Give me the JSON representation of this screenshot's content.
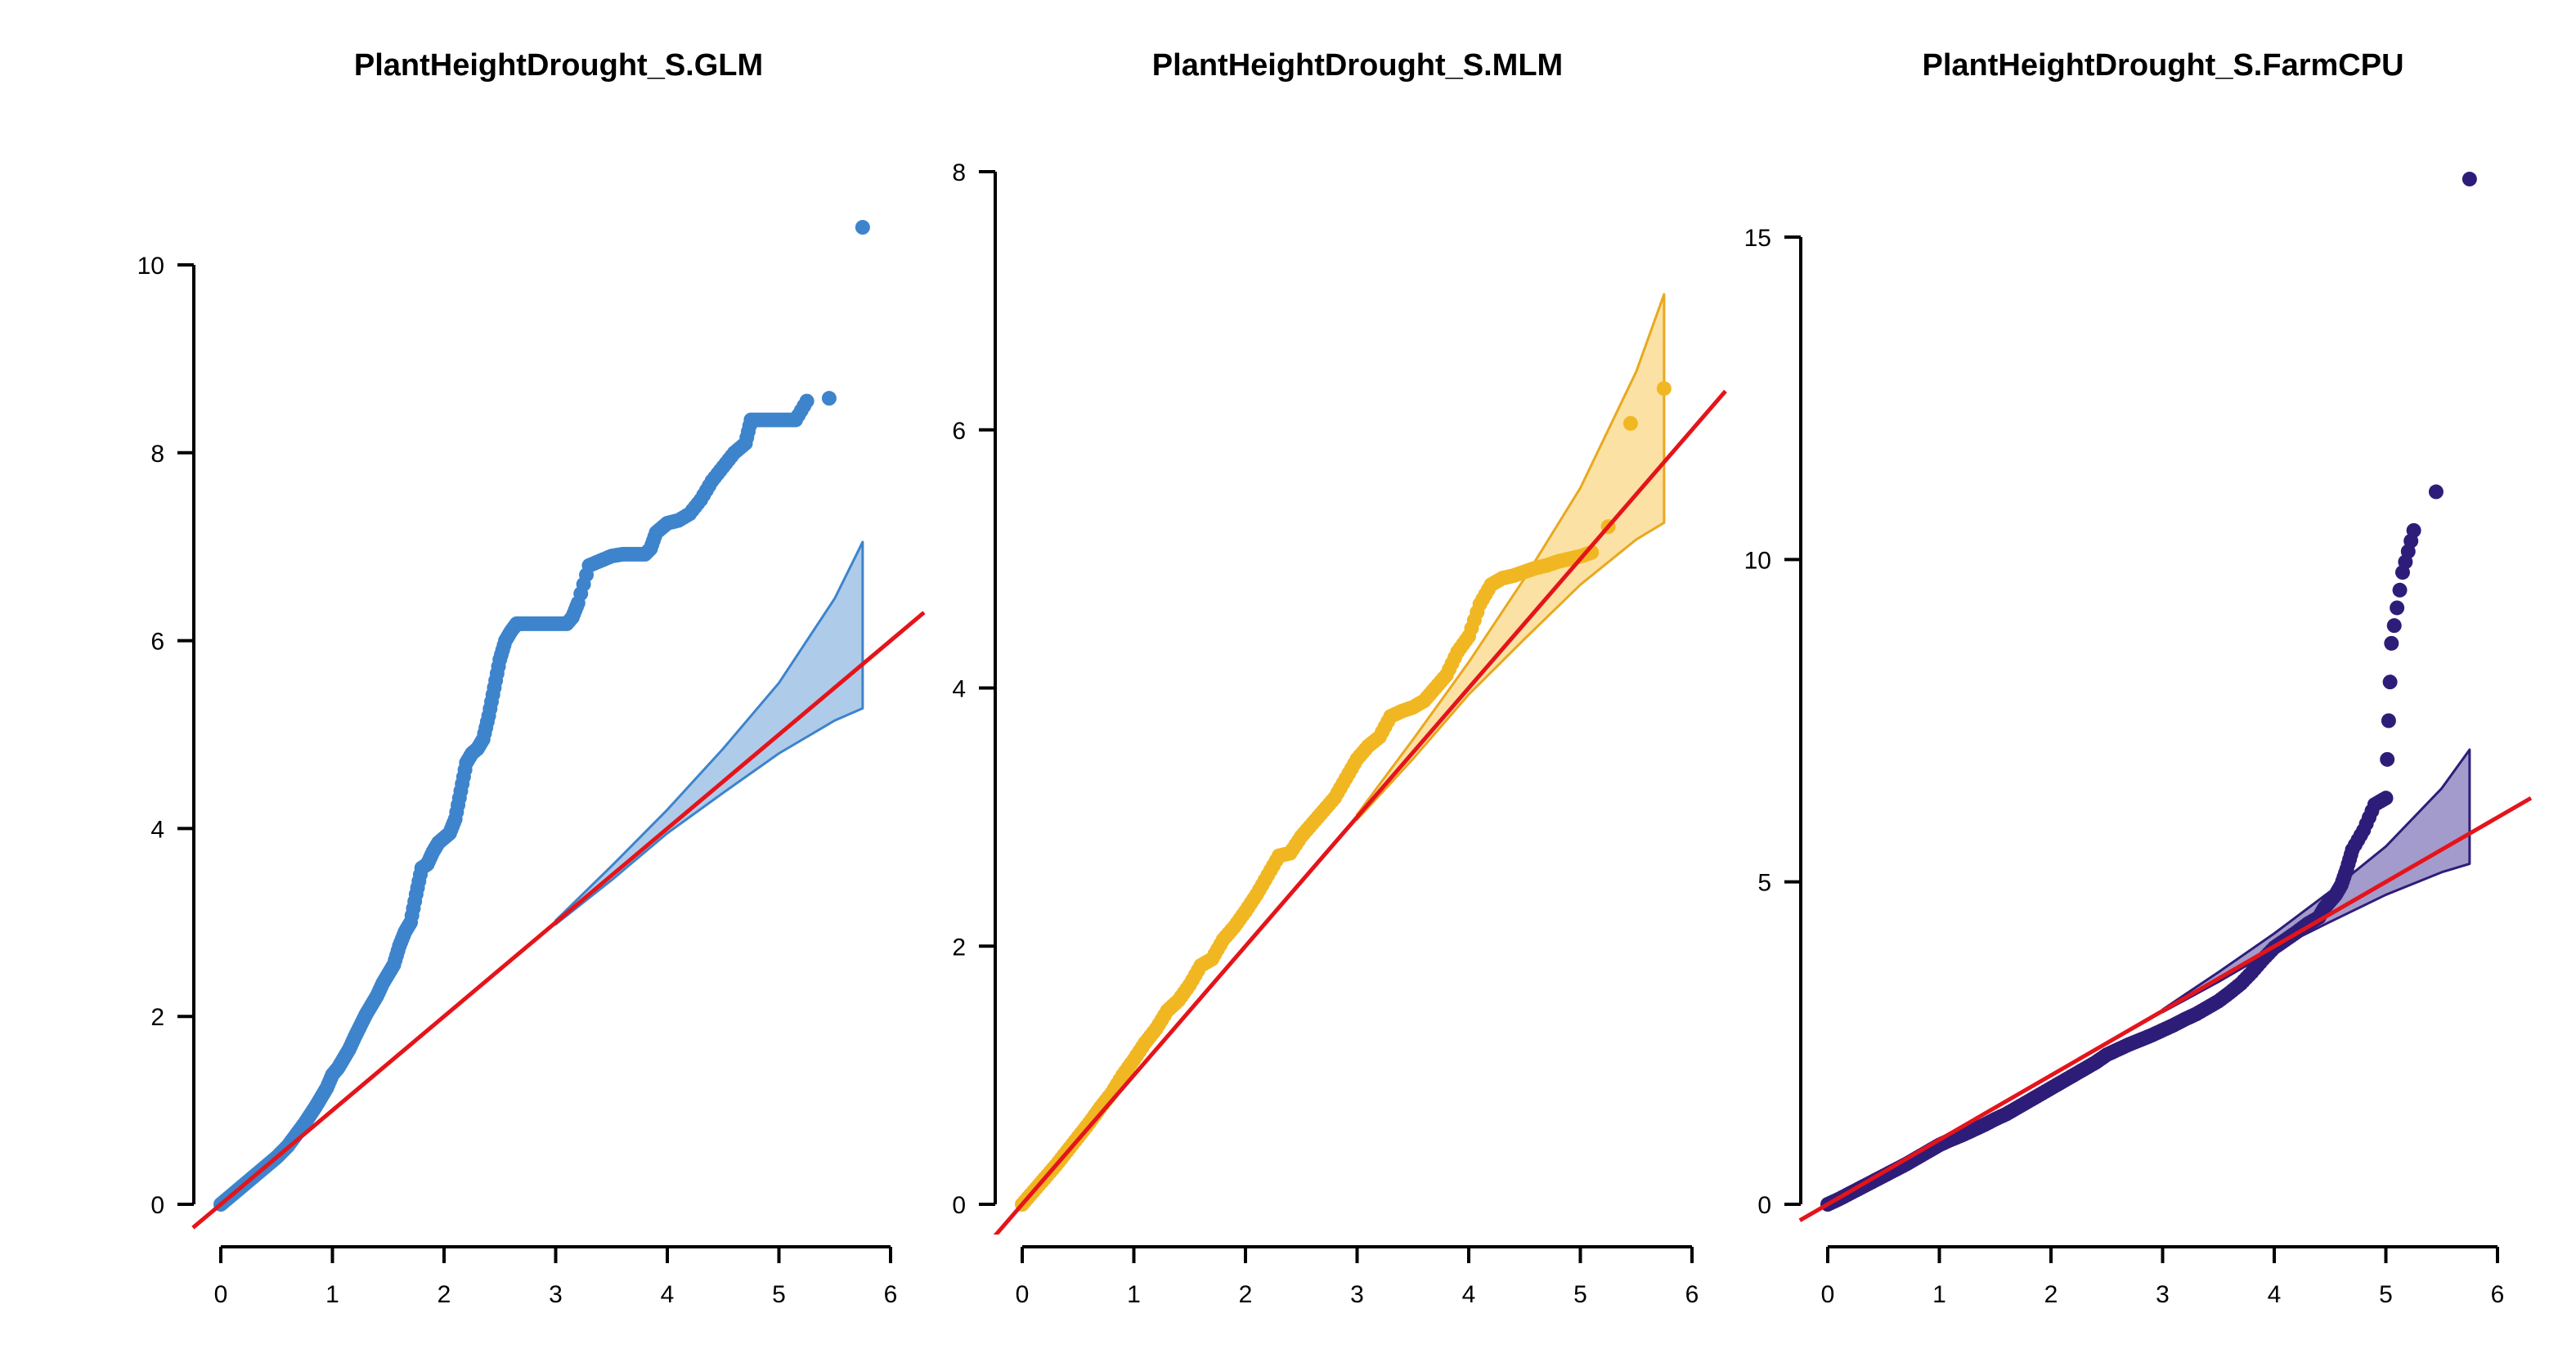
{
  "chart_data": [
    {
      "type": "scatter",
      "title": "PlantHeightDrought_S.GLM",
      "xlabel": "",
      "ylabel": "",
      "xlim": [
        0,
        6
      ],
      "ylim": [
        0,
        10
      ],
      "x_ticks": [
        0,
        1,
        2,
        3,
        4,
        5,
        6
      ],
      "y_ticks": [
        0,
        2,
        4,
        6,
        8,
        10
      ],
      "point_color": "#3D84CC",
      "band_fill": "#AFCBEA",
      "band_stroke": "#3D84CC",
      "reference_line_color": "#E4141B",
      "grid": false,
      "points": [
        [
          0,
          0
        ],
        [
          0.05,
          0.05
        ],
        [
          0.1,
          0.1
        ],
        [
          0.15,
          0.15
        ],
        [
          0.2,
          0.2
        ],
        [
          0.25,
          0.25
        ],
        [
          0.3,
          0.3
        ],
        [
          0.35,
          0.35
        ],
        [
          0.4,
          0.4
        ],
        [
          0.45,
          0.45
        ],
        [
          0.5,
          0.5
        ],
        [
          0.55,
          0.56
        ],
        [
          0.6,
          0.62
        ],
        [
          0.65,
          0.7
        ],
        [
          0.7,
          0.78
        ],
        [
          0.75,
          0.86
        ],
        [
          0.8,
          0.95
        ],
        [
          0.85,
          1.04
        ],
        [
          0.9,
          1.14
        ],
        [
          0.95,
          1.24
        ],
        [
          1.0,
          1.38
        ],
        [
          1.05,
          1.45
        ],
        [
          1.1,
          1.55
        ],
        [
          1.15,
          1.65
        ],
        [
          1.2,
          1.78
        ],
        [
          1.25,
          1.9
        ],
        [
          1.3,
          2.02
        ],
        [
          1.35,
          2.12
        ],
        [
          1.4,
          2.22
        ],
        [
          1.45,
          2.35
        ],
        [
          1.5,
          2.45
        ],
        [
          1.55,
          2.55
        ],
        [
          1.6,
          2.75
        ],
        [
          1.65,
          2.9
        ],
        [
          1.7,
          3.0
        ],
        [
          1.75,
          3.3
        ],
        [
          1.8,
          3.58
        ],
        [
          1.85,
          3.62
        ],
        [
          1.9,
          3.75
        ],
        [
          1.95,
          3.85
        ],
        [
          2.0,
          3.9
        ],
        [
          2.05,
          3.95
        ],
        [
          2.1,
          4.1
        ],
        [
          2.15,
          4.4
        ],
        [
          2.2,
          4.7
        ],
        [
          2.25,
          4.8
        ],
        [
          2.3,
          4.85
        ],
        [
          2.35,
          4.95
        ],
        [
          2.4,
          5.2
        ],
        [
          2.45,
          5.5
        ],
        [
          2.5,
          5.8
        ],
        [
          2.55,
          6.0
        ],
        [
          2.6,
          6.1
        ],
        [
          2.65,
          6.18
        ],
        [
          2.7,
          6.18
        ],
        [
          2.8,
          6.18
        ],
        [
          2.9,
          6.18
        ],
        [
          3.0,
          6.18
        ],
        [
          3.1,
          6.18
        ],
        [
          3.15,
          6.25
        ],
        [
          3.2,
          6.4
        ],
        [
          3.3,
          6.8
        ],
        [
          3.4,
          6.85
        ],
        [
          3.5,
          6.9
        ],
        [
          3.6,
          6.92
        ],
        [
          3.7,
          6.92
        ],
        [
          3.8,
          6.92
        ],
        [
          3.85,
          6.98
        ],
        [
          3.9,
          7.15
        ],
        [
          3.95,
          7.2
        ],
        [
          4.0,
          7.25
        ],
        [
          4.1,
          7.28
        ],
        [
          4.2,
          7.35
        ],
        [
          4.3,
          7.5
        ],
        [
          4.4,
          7.7
        ],
        [
          4.5,
          7.85
        ],
        [
          4.6,
          8.0
        ],
        [
          4.7,
          8.1
        ],
        [
          4.75,
          8.35
        ],
        [
          4.85,
          8.35
        ],
        [
          4.95,
          8.35
        ],
        [
          5.05,
          8.35
        ],
        [
          5.15,
          8.35
        ],
        [
          5.25,
          8.55
        ],
        [
          5.45,
          8.58
        ],
        [
          5.75,
          10.4
        ]
      ],
      "reference_line": [
        [
          -0.25,
          -0.25
        ],
        [
          6.3,
          6.3
        ]
      ],
      "band": {
        "x": [
          3.0,
          3.5,
          4.0,
          4.5,
          5.0,
          5.5,
          5.75
        ],
        "upper": [
          3.02,
          3.6,
          4.2,
          4.85,
          5.55,
          6.45,
          7.05
        ],
        "lower": [
          2.98,
          3.45,
          3.95,
          4.38,
          4.8,
          5.15,
          5.28
        ]
      }
    },
    {
      "type": "scatter",
      "title": "PlantHeightDrought_S.MLM",
      "xlabel": "",
      "ylabel": "",
      "xlim": [
        0,
        6
      ],
      "ylim": [
        0,
        8
      ],
      "x_ticks": [
        0,
        1,
        2,
        3,
        4,
        5,
        6
      ],
      "y_ticks": [
        0,
        2,
        4,
        6,
        8
      ],
      "point_color": "#F1B722",
      "band_fill": "#FBE1A3",
      "band_stroke": "#E9A81F",
      "reference_line_color": "#E4141B",
      "grid": false,
      "points": [
        [
          0,
          0
        ],
        [
          0.1,
          0.1
        ],
        [
          0.2,
          0.2
        ],
        [
          0.3,
          0.3
        ],
        [
          0.4,
          0.41
        ],
        [
          0.5,
          0.52
        ],
        [
          0.6,
          0.63
        ],
        [
          0.7,
          0.75
        ],
        [
          0.8,
          0.86
        ],
        [
          0.9,
          1.0
        ],
        [
          1.0,
          1.12
        ],
        [
          1.1,
          1.25
        ],
        [
          1.2,
          1.36
        ],
        [
          1.3,
          1.5
        ],
        [
          1.4,
          1.58
        ],
        [
          1.5,
          1.7
        ],
        [
          1.6,
          1.85
        ],
        [
          1.7,
          1.9
        ],
        [
          1.8,
          2.05
        ],
        [
          1.9,
          2.15
        ],
        [
          2.0,
          2.27
        ],
        [
          2.1,
          2.4
        ],
        [
          2.2,
          2.55
        ],
        [
          2.3,
          2.7
        ],
        [
          2.4,
          2.72
        ],
        [
          2.5,
          2.85
        ],
        [
          2.6,
          2.95
        ],
        [
          2.7,
          3.05
        ],
        [
          2.8,
          3.15
        ],
        [
          2.9,
          3.3
        ],
        [
          3.0,
          3.45
        ],
        [
          3.1,
          3.55
        ],
        [
          3.2,
          3.62
        ],
        [
          3.3,
          3.78
        ],
        [
          3.4,
          3.82
        ],
        [
          3.5,
          3.85
        ],
        [
          3.6,
          3.9
        ],
        [
          3.7,
          4.0
        ],
        [
          3.8,
          4.1
        ],
        [
          3.9,
          4.28
        ],
        [
          4.0,
          4.4
        ],
        [
          4.1,
          4.65
        ],
        [
          4.2,
          4.8
        ],
        [
          4.3,
          4.85
        ],
        [
          4.4,
          4.87
        ],
        [
          4.5,
          4.9
        ],
        [
          4.6,
          4.93
        ],
        [
          4.7,
          4.95
        ],
        [
          4.8,
          4.98
        ],
        [
          4.9,
          5.0
        ],
        [
          5.0,
          5.02
        ],
        [
          5.1,
          5.05
        ],
        [
          5.25,
          5.25
        ],
        [
          5.45,
          6.05
        ],
        [
          5.75,
          6.32
        ]
      ],
      "reference_line": [
        [
          -0.25,
          -0.25
        ],
        [
          6.3,
          6.3
        ]
      ],
      "band": {
        "x": [
          3.0,
          3.5,
          4.0,
          4.5,
          5.0,
          5.5,
          5.75
        ],
        "upper": [
          3.02,
          3.6,
          4.2,
          4.85,
          5.55,
          6.45,
          7.05
        ],
        "lower": [
          2.98,
          3.45,
          3.95,
          4.38,
          4.8,
          5.15,
          5.28
        ]
      }
    },
    {
      "type": "scatter",
      "title": "PlantHeightDrought_S.FarmCPU",
      "xlabel": "",
      "ylabel": "",
      "xlim": [
        0,
        6
      ],
      "ylim": [
        0,
        15
      ],
      "x_ticks": [
        0,
        1,
        2,
        3,
        4,
        5,
        6
      ],
      "y_ticks": [
        0,
        5,
        10,
        15
      ],
      "point_color": "#2E1D78",
      "band_fill": "#A39BCB",
      "band_stroke": "#2E1D78",
      "reference_line_color": "#E4141B",
      "grid": false,
      "points": [
        [
          0,
          0
        ],
        [
          0.1,
          0.08
        ],
        [
          0.2,
          0.17
        ],
        [
          0.3,
          0.26
        ],
        [
          0.4,
          0.35
        ],
        [
          0.5,
          0.44
        ],
        [
          0.6,
          0.53
        ],
        [
          0.7,
          0.62
        ],
        [
          0.8,
          0.72
        ],
        [
          0.9,
          0.82
        ],
        [
          1.0,
          0.92
        ],
        [
          1.1,
          1.0
        ],
        [
          1.2,
          1.07
        ],
        [
          1.3,
          1.15
        ],
        [
          1.4,
          1.23
        ],
        [
          1.5,
          1.32
        ],
        [
          1.6,
          1.4
        ],
        [
          1.7,
          1.5
        ],
        [
          1.8,
          1.6
        ],
        [
          1.9,
          1.7
        ],
        [
          2.0,
          1.8
        ],
        [
          2.1,
          1.9
        ],
        [
          2.2,
          2.0
        ],
        [
          2.3,
          2.1
        ],
        [
          2.4,
          2.2
        ],
        [
          2.5,
          2.32
        ],
        [
          2.6,
          2.4
        ],
        [
          2.7,
          2.48
        ],
        [
          2.8,
          2.55
        ],
        [
          2.9,
          2.62
        ],
        [
          3.0,
          2.7
        ],
        [
          3.1,
          2.78
        ],
        [
          3.2,
          2.87
        ],
        [
          3.3,
          2.95
        ],
        [
          3.4,
          3.05
        ],
        [
          3.5,
          3.15
        ],
        [
          3.6,
          3.28
        ],
        [
          3.7,
          3.42
        ],
        [
          3.8,
          3.6
        ],
        [
          3.9,
          3.8
        ],
        [
          4.0,
          3.98
        ],
        [
          4.1,
          4.1
        ],
        [
          4.2,
          4.22
        ],
        [
          4.3,
          4.35
        ],
        [
          4.4,
          4.45
        ],
        [
          4.45,
          4.6
        ],
        [
          4.5,
          4.7
        ],
        [
          4.55,
          4.8
        ],
        [
          4.6,
          4.95
        ],
        [
          4.65,
          5.2
        ],
        [
          4.7,
          5.5
        ],
        [
          4.8,
          5.8
        ],
        [
          4.9,
          6.2
        ],
        [
          5.0,
          6.3
        ],
        [
          5.05,
          8.7
        ],
        [
          5.15,
          9.8
        ],
        [
          5.25,
          10.45
        ],
        [
          5.45,
          11.05
        ],
        [
          5.75,
          15.9
        ]
      ],
      "reference_line": [
        [
          -0.25,
          -0.25
        ],
        [
          6.3,
          6.3
        ]
      ],
      "band": {
        "x": [
          3.0,
          3.5,
          4.0,
          4.5,
          5.0,
          5.5,
          5.75
        ],
        "upper": [
          3.02,
          3.6,
          4.2,
          4.85,
          5.55,
          6.45,
          7.05
        ],
        "lower": [
          2.98,
          3.45,
          3.95,
          4.38,
          4.8,
          5.15,
          5.28
        ]
      }
    }
  ]
}
